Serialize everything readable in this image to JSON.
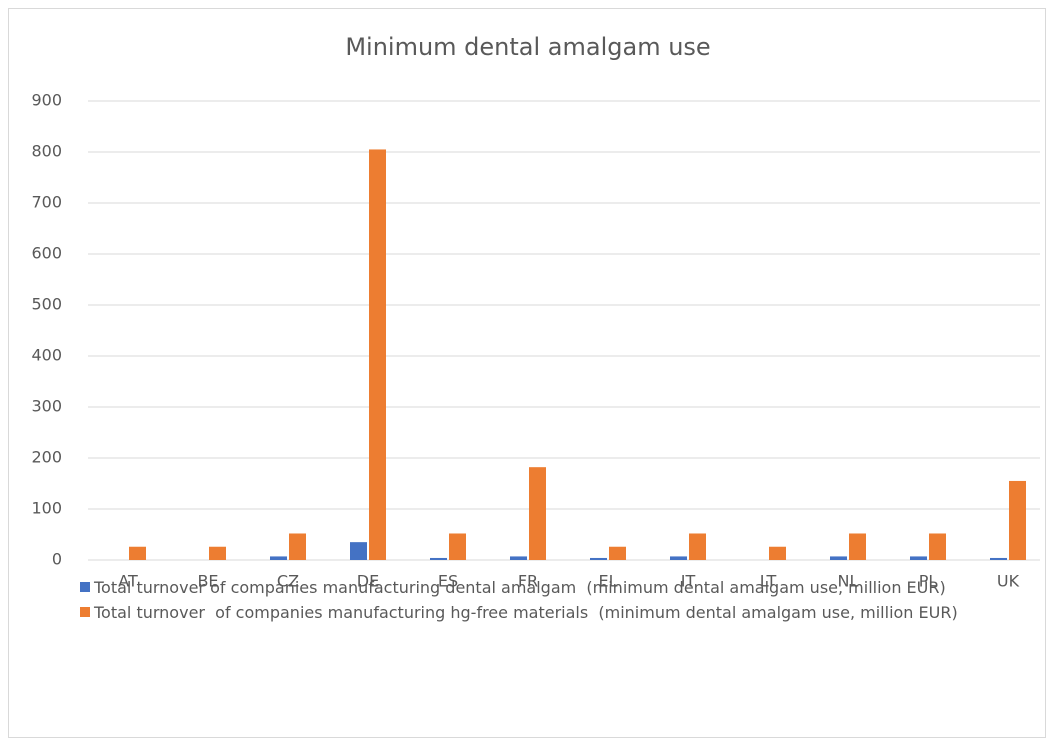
{
  "chart_data": {
    "type": "bar",
    "title": "Minimum dental amalgam use",
    "categories": [
      "AT",
      "BE",
      "CZ",
      "DE",
      "ES",
      "FR",
      "EL",
      "IT",
      "LT",
      "NL",
      "PL",
      "UK"
    ],
    "series": [
      {
        "name": "Total turnover of companies manufacturing dental amalgam  (minimum dental amalgam use, million EUR)",
        "color": "#4472c4",
        "values": [
          0,
          0,
          7,
          35,
          4,
          7,
          4,
          7,
          0,
          7,
          7,
          4
        ]
      },
      {
        "name": "Total turnover  of companies manufacturing hg-free materials  (minimum dental amalgam use, million EUR)",
        "color": "#ed7d31",
        "values": [
          26,
          26,
          52,
          805,
          52,
          182,
          26,
          52,
          26,
          52,
          52,
          155
        ]
      }
    ],
    "ylim": [
      0,
      900
    ],
    "yticks": [
      0,
      100,
      200,
      300,
      400,
      500,
      600,
      700,
      800,
      900
    ],
    "grid": true,
    "legend": "bottom"
  }
}
